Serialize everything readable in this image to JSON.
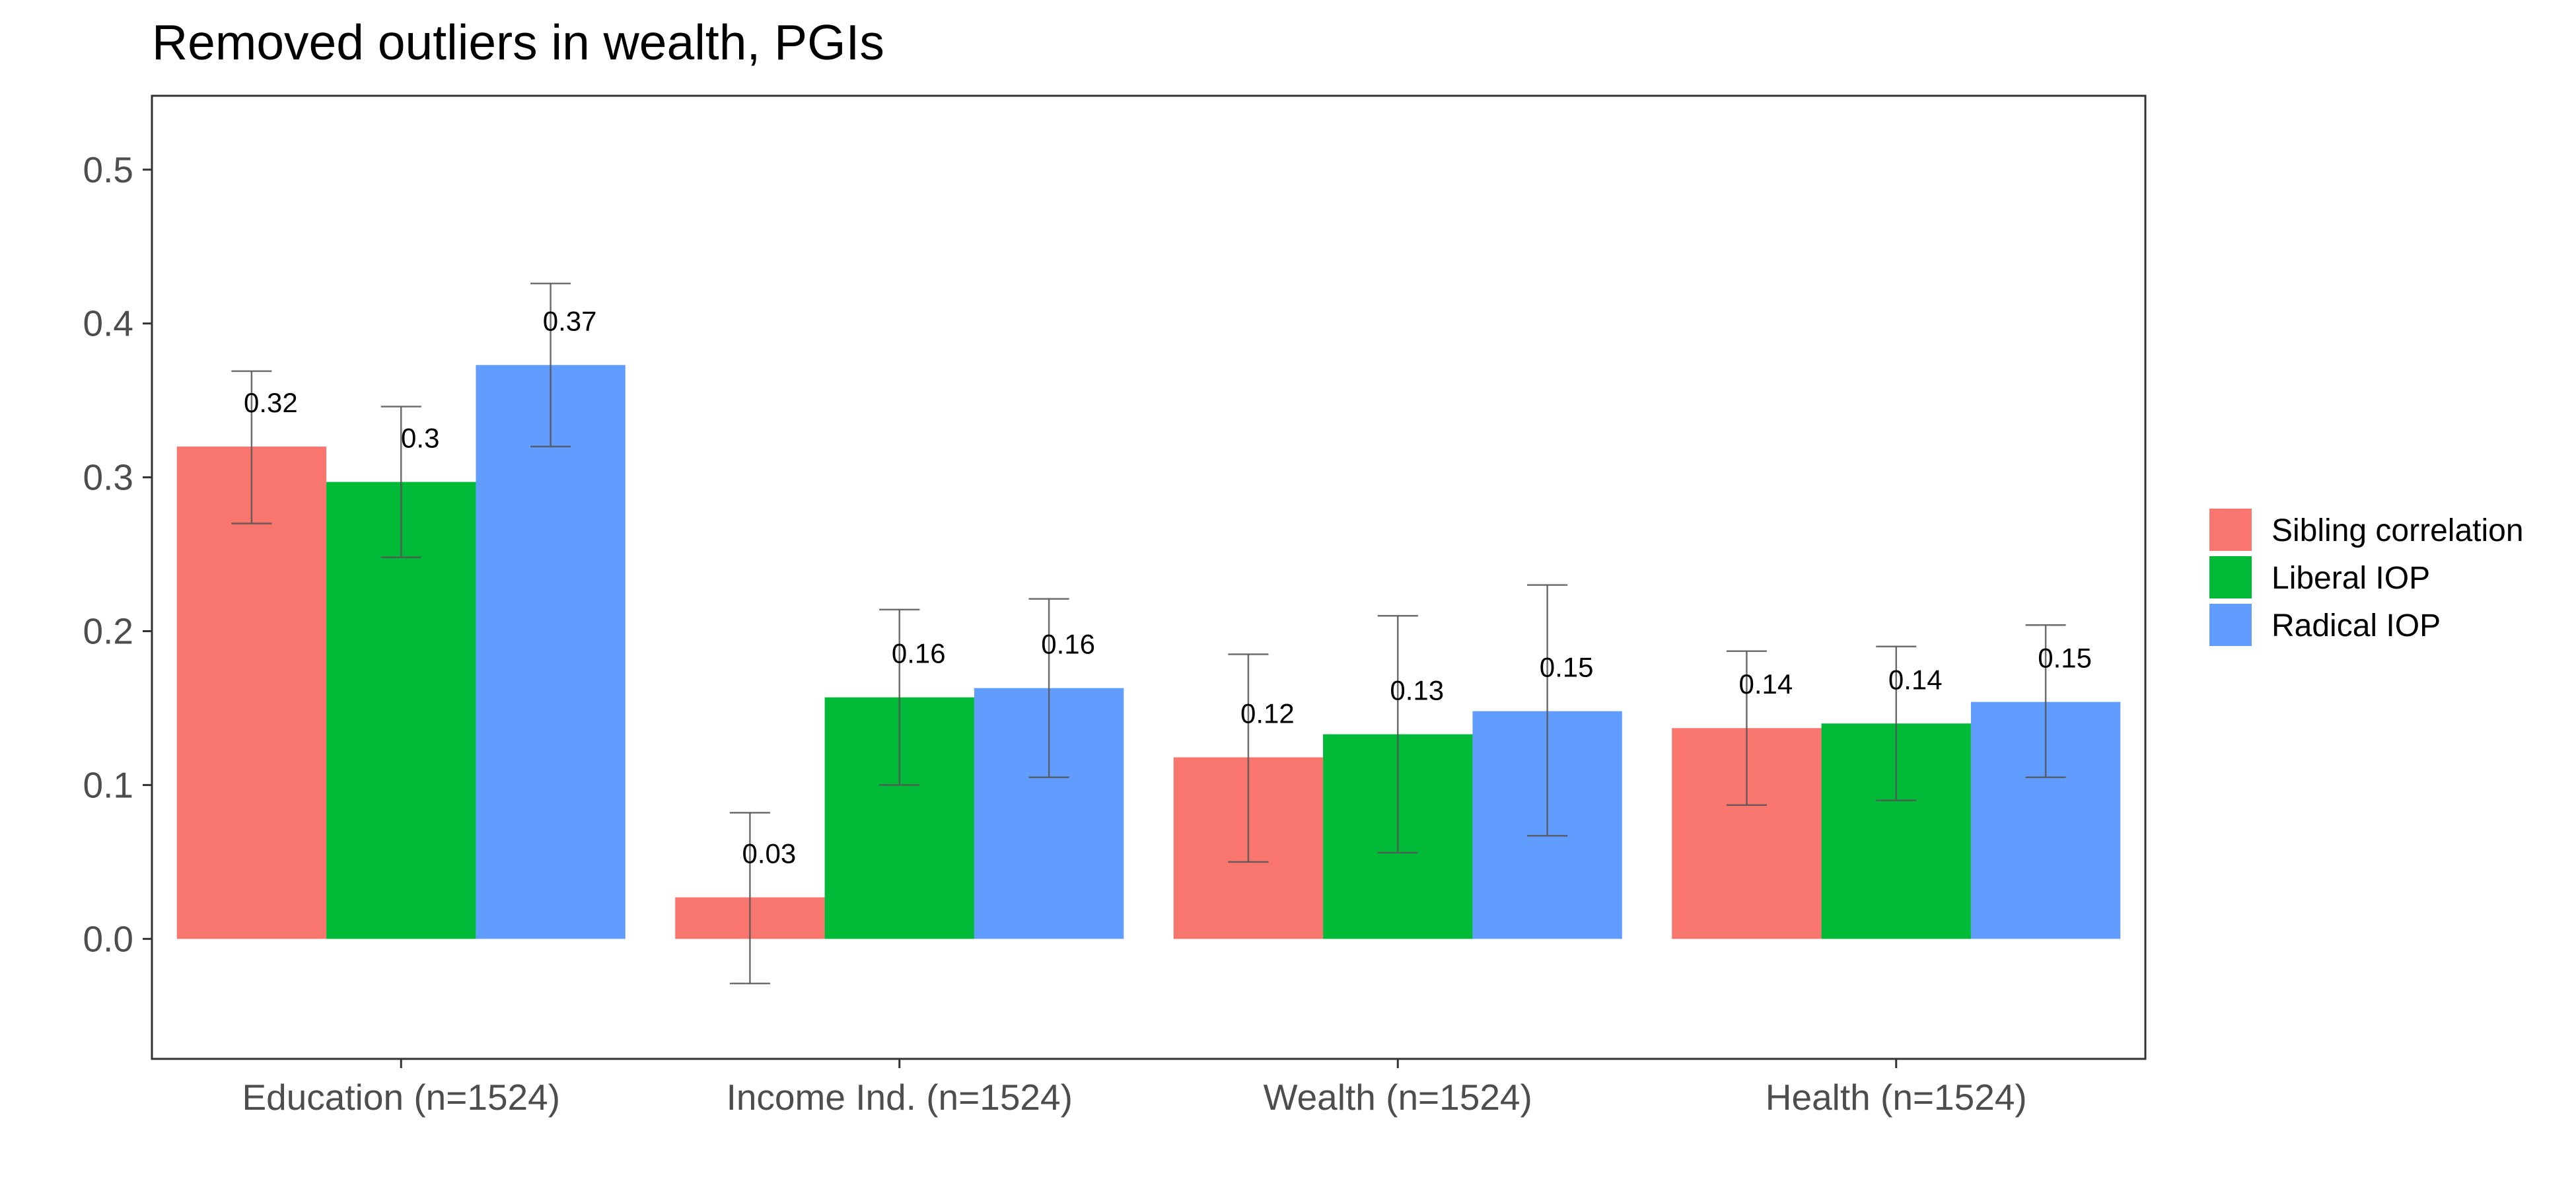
{
  "chart_data": {
    "type": "bar",
    "title": "Removed outliers in wealth, PGIs",
    "xlabel": "",
    "ylabel": "",
    "ylim": [
      -0.078,
      0.548
    ],
    "y_ticks": [
      "0.0",
      "0.1",
      "0.2",
      "0.3",
      "0.4",
      "0.5"
    ],
    "y_tick_values": [
      0.0,
      0.1,
      0.2,
      0.3,
      0.4,
      0.5
    ],
    "categories": [
      "Education (n=1524)",
      "Income Ind. (n=1524)",
      "Wealth (n=1524)",
      "Health (n=1524)"
    ],
    "series": [
      {
        "name": "Sibling correlation",
        "color": "#F8766D",
        "values": [
          0.32,
          0.027,
          0.118,
          0.137
        ],
        "labels": [
          "0.32",
          "0.03",
          "0.12",
          "0.14"
        ],
        "ci_low": [
          0.27,
          -0.029,
          0.05,
          0.087
        ],
        "ci_high": [
          0.369,
          0.082,
          0.185,
          0.187
        ]
      },
      {
        "name": "Liberal IOP",
        "color": "#00BA38",
        "values": [
          0.297,
          0.157,
          0.133,
          0.14
        ],
        "labels": [
          "0.3",
          "0.16",
          "0.13",
          "0.14"
        ],
        "ci_low": [
          0.248,
          0.1,
          0.056,
          0.09
        ],
        "ci_high": [
          0.346,
          0.214,
          0.21,
          0.19
        ]
      },
      {
        "name": "Radical IOP",
        "color": "#619CFF",
        "values": [
          0.373,
          0.163,
          0.148,
          0.154
        ],
        "labels": [
          "0.37",
          "0.16",
          "0.15",
          "0.15"
        ],
        "ci_low": [
          0.32,
          0.105,
          0.067,
          0.105
        ],
        "ci_high": [
          0.426,
          0.221,
          0.23,
          0.204
        ]
      }
    ],
    "grid": false,
    "legend_position": "right",
    "error_bar_color": "#555555"
  }
}
